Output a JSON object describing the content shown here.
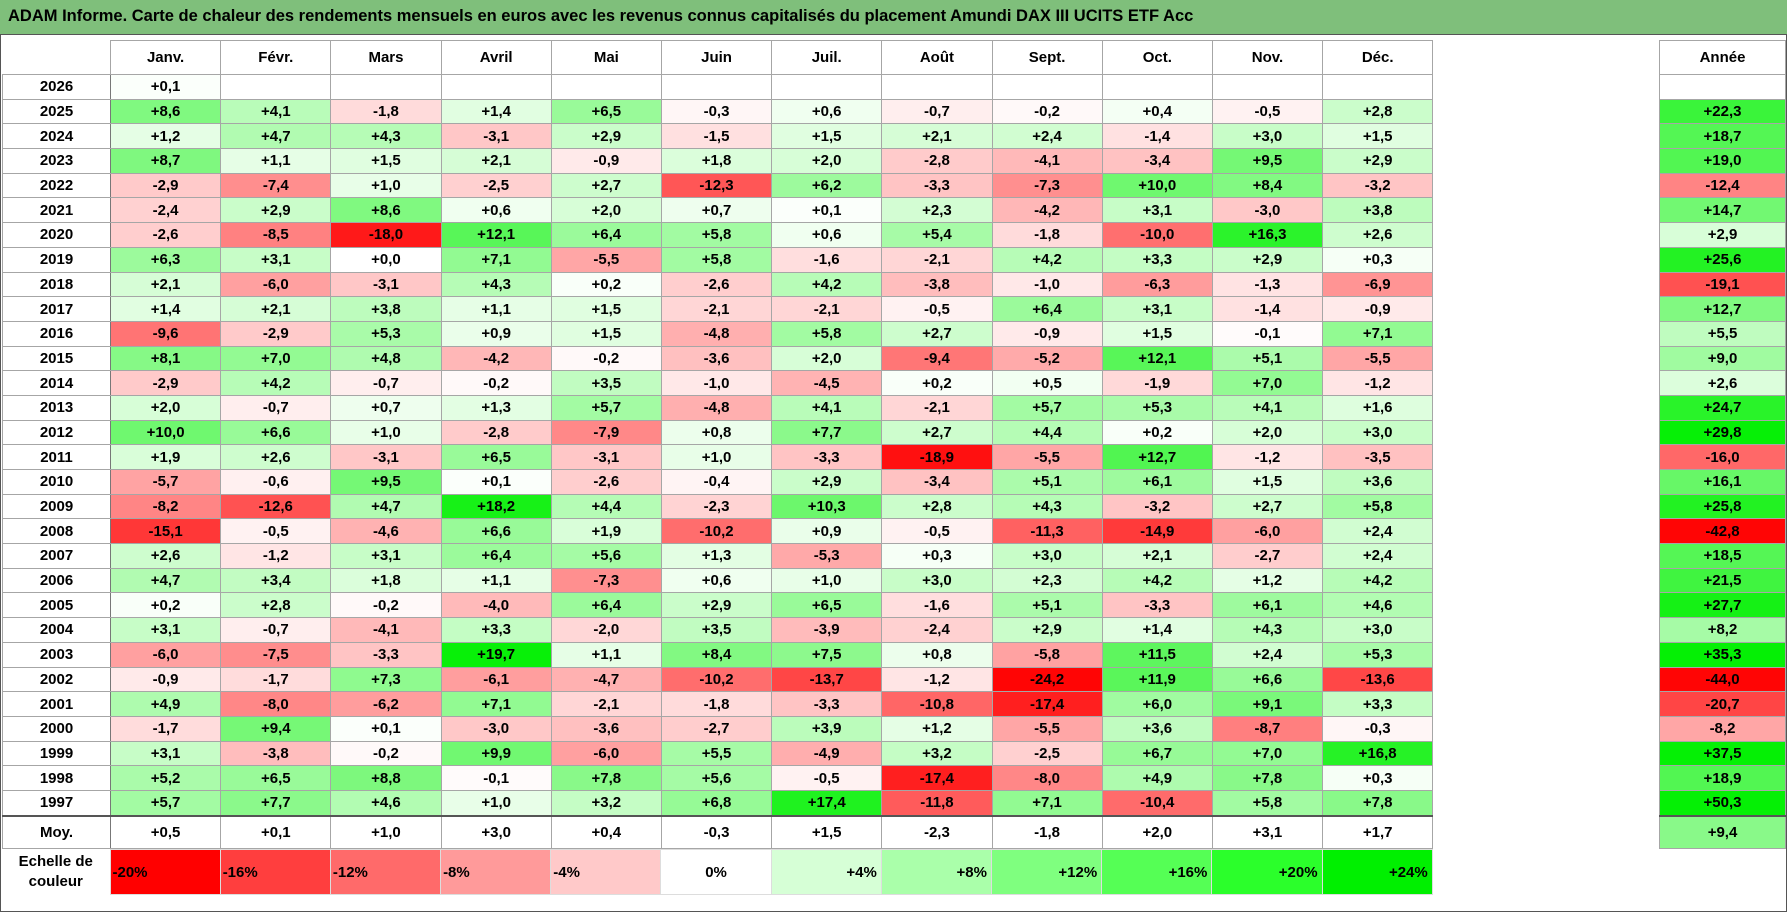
{
  "title": "ADAM Informe. Carte de chaleur des rendements mensuels en euros avec les revenus connus capitalisés du placement Amundi DAX III UCITS ETF Acc",
  "chart_data": {
    "type": "heatmap",
    "columns": [
      "Janv.",
      "Févr.",
      "Mars",
      "Avril",
      "Mai",
      "Juin",
      "Juil.",
      "Août",
      "Sept.",
      "Oct.",
      "Nov.",
      "Déc."
    ],
    "annual_header": "Année",
    "rows": [
      {
        "year": "2026",
        "values": [
          "+0,1",
          "",
          "",
          "",
          "",
          "",
          "",
          "",
          "",
          "",
          "",
          ""
        ],
        "annual": ""
      },
      {
        "year": "2025",
        "values": [
          "+8,6",
          "+4,1",
          "-1,8",
          "+1,4",
          "+6,5",
          "-0,3",
          "+0,6",
          "-0,7",
          "-0,2",
          "+0,4",
          "-0,5",
          "+2,8"
        ],
        "annual": "+22,3"
      },
      {
        "year": "2024",
        "values": [
          "+1,2",
          "+4,7",
          "+4,3",
          "-3,1",
          "+2,9",
          "-1,5",
          "+1,5",
          "+2,1",
          "+2,4",
          "-1,4",
          "+3,0",
          "+1,5"
        ],
        "annual": "+18,7"
      },
      {
        "year": "2023",
        "values": [
          "+8,7",
          "+1,1",
          "+1,5",
          "+2,1",
          "-0,9",
          "+1,8",
          "+2,0",
          "-2,8",
          "-4,1",
          "-3,4",
          "+9,5",
          "+2,9"
        ],
        "annual": "+19,0"
      },
      {
        "year": "2022",
        "values": [
          "-2,9",
          "-7,4",
          "+1,0",
          "-2,5",
          "+2,7",
          "-12,3",
          "+6,2",
          "-3,3",
          "-7,3",
          "+10,0",
          "+8,4",
          "-3,2"
        ],
        "annual": "-12,4"
      },
      {
        "year": "2021",
        "values": [
          "-2,4",
          "+2,9",
          "+8,6",
          "+0,6",
          "+2,0",
          "+0,7",
          "+0,1",
          "+2,3",
          "-4,2",
          "+3,1",
          "-3,0",
          "+3,8"
        ],
        "annual": "+14,7"
      },
      {
        "year": "2020",
        "values": [
          "-2,6",
          "-8,5",
          "-18,0",
          "+12,1",
          "+6,4",
          "+5,8",
          "+0,6",
          "+5,4",
          "-1,8",
          "-10,0",
          "+16,3",
          "+2,6"
        ],
        "annual": "+2,9"
      },
      {
        "year": "2019",
        "values": [
          "+6,3",
          "+3,1",
          "+0,0",
          "+7,1",
          "-5,5",
          "+5,8",
          "-1,6",
          "-2,1",
          "+4,2",
          "+3,3",
          "+2,9",
          "+0,3"
        ],
        "annual": "+25,6"
      },
      {
        "year": "2018",
        "values": [
          "+2,1",
          "-6,0",
          "-3,1",
          "+4,3",
          "+0,2",
          "-2,6",
          "+4,2",
          "-3,8",
          "-1,0",
          "-6,3",
          "-1,3",
          "-6,9"
        ],
        "annual": "-19,1"
      },
      {
        "year": "2017",
        "values": [
          "+1,4",
          "+2,1",
          "+3,8",
          "+1,1",
          "+1,5",
          "-2,1",
          "-2,1",
          "-0,5",
          "+6,4",
          "+3,1",
          "-1,4",
          "-0,9"
        ],
        "annual": "+12,7"
      },
      {
        "year": "2016",
        "values": [
          "-9,6",
          "-2,9",
          "+5,3",
          "+0,9",
          "+1,5",
          "-4,8",
          "+5,8",
          "+2,7",
          "-0,9",
          "+1,5",
          "-0,1",
          "+7,1"
        ],
        "annual": "+5,5"
      },
      {
        "year": "2015",
        "values": [
          "+8,1",
          "+7,0",
          "+4,8",
          "-4,2",
          "-0,2",
          "-3,6",
          "+2,0",
          "-9,4",
          "-5,2",
          "+12,1",
          "+5,1",
          "-5,5"
        ],
        "annual": "+9,0"
      },
      {
        "year": "2014",
        "values": [
          "-2,9",
          "+4,2",
          "-0,7",
          "-0,2",
          "+3,5",
          "-1,0",
          "-4,5",
          "+0,2",
          "+0,5",
          "-1,9",
          "+7,0",
          "-1,2"
        ],
        "annual": "+2,6"
      },
      {
        "year": "2013",
        "values": [
          "+2,0",
          "-0,7",
          "+0,7",
          "+1,3",
          "+5,7",
          "-4,8",
          "+4,1",
          "-2,1",
          "+5,7",
          "+5,3",
          "+4,1",
          "+1,6"
        ],
        "annual": "+24,7"
      },
      {
        "year": "2012",
        "values": [
          "+10,0",
          "+6,6",
          "+1,0",
          "-2,8",
          "-7,9",
          "+0,8",
          "+7,7",
          "+2,7",
          "+4,4",
          "+0,2",
          "+2,0",
          "+3,0"
        ],
        "annual": "+29,8"
      },
      {
        "year": "2011",
        "values": [
          "+1,9",
          "+2,6",
          "-3,1",
          "+6,5",
          "-3,1",
          "+1,0",
          "-3,3",
          "-18,9",
          "-5,5",
          "+12,7",
          "-1,2",
          "-3,5"
        ],
        "annual": "-16,0"
      },
      {
        "year": "2010",
        "values": [
          "-5,7",
          "-0,6",
          "+9,5",
          "+0,1",
          "-2,6",
          "-0,4",
          "+2,9",
          "-3,4",
          "+5,1",
          "+6,1",
          "+1,5",
          "+3,6"
        ],
        "annual": "+16,1"
      },
      {
        "year": "2009",
        "values": [
          "-8,2",
          "-12,6",
          "+4,7",
          "+18,2",
          "+4,4",
          "-2,3",
          "+10,3",
          "+2,8",
          "+4,3",
          "-3,2",
          "+2,7",
          "+5,8"
        ],
        "annual": "+25,8"
      },
      {
        "year": "2008",
        "values": [
          "-15,1",
          "-0,5",
          "-4,6",
          "+6,6",
          "+1,9",
          "-10,2",
          "+0,9",
          "-0,5",
          "-11,3",
          "-14,9",
          "-6,0",
          "+2,4"
        ],
        "annual": "-42,8"
      },
      {
        "year": "2007",
        "values": [
          "+2,6",
          "-1,2",
          "+3,1",
          "+6,4",
          "+5,6",
          "+1,3",
          "-5,3",
          "+0,3",
          "+3,0",
          "+2,1",
          "-2,7",
          "+2,4"
        ],
        "annual": "+18,5"
      },
      {
        "year": "2006",
        "values": [
          "+4,7",
          "+3,4",
          "+1,8",
          "+1,1",
          "-7,3",
          "+0,6",
          "+1,0",
          "+3,0",
          "+2,3",
          "+4,2",
          "+1,2",
          "+4,2"
        ],
        "annual": "+21,5"
      },
      {
        "year": "2005",
        "values": [
          "+0,2",
          "+2,8",
          "-0,2",
          "-4,0",
          "+6,4",
          "+2,9",
          "+6,5",
          "-1,6",
          "+5,1",
          "-3,3",
          "+6,1",
          "+4,6"
        ],
        "annual": "+27,7"
      },
      {
        "year": "2004",
        "values": [
          "+3,1",
          "-0,7",
          "-4,1",
          "+3,3",
          "-2,0",
          "+3,5",
          "-3,9",
          "-2,4",
          "+2,9",
          "+1,4",
          "+4,3",
          "+3,0"
        ],
        "annual": "+8,2"
      },
      {
        "year": "2003",
        "values": [
          "-6,0",
          "-7,5",
          "-3,3",
          "+19,7",
          "+1,1",
          "+8,4",
          "+7,5",
          "+0,8",
          "-5,8",
          "+11,5",
          "+2,4",
          "+5,3"
        ],
        "annual": "+35,3"
      },
      {
        "year": "2002",
        "values": [
          "-0,9",
          "-1,7",
          "+7,3",
          "-6,1",
          "-4,7",
          "-10,2",
          "-13,7",
          "-1,2",
          "-24,2",
          "+11,9",
          "+6,6",
          "-13,6"
        ],
        "annual": "-44,0"
      },
      {
        "year": "2001",
        "values": [
          "+4,9",
          "-8,0",
          "-6,2",
          "+7,1",
          "-2,1",
          "-1,8",
          "-3,3",
          "-10,8",
          "-17,4",
          "+6,0",
          "+9,1",
          "+3,3"
        ],
        "annual": "-20,7"
      },
      {
        "year": "2000",
        "values": [
          "-1,7",
          "+9,4",
          "+0,1",
          "-3,0",
          "-3,6",
          "-2,7",
          "+3,9",
          "+1,2",
          "-5,5",
          "+3,6",
          "-8,7",
          "-0,3"
        ],
        "annual": "-8,2"
      },
      {
        "year": "1999",
        "values": [
          "+3,1",
          "-3,8",
          "-0,2",
          "+9,9",
          "-6,0",
          "+5,5",
          "-4,9",
          "+3,2",
          "-2,5",
          "+6,7",
          "+7,0",
          "+16,8"
        ],
        "annual": "+37,5"
      },
      {
        "year": "1998",
        "values": [
          "+5,2",
          "+6,5",
          "+8,8",
          "-0,1",
          "+7,8",
          "+5,6",
          "-0,5",
          "-17,4",
          "-8,0",
          "+4,9",
          "+7,8",
          "+0,3"
        ],
        "annual": "+18,9"
      },
      {
        "year": "1997",
        "values": [
          "+5,7",
          "+7,7",
          "+4,6",
          "+1,0",
          "+3,2",
          "+6,8",
          "+17,4",
          "-11,8",
          "+7,1",
          "-10,4",
          "+5,8",
          "+7,8"
        ],
        "annual": "+50,3"
      }
    ],
    "average": {
      "label": "Moy.",
      "values": [
        "+0,5",
        "+0,1",
        "+1,0",
        "+3,0",
        "+0,4",
        "-0,3",
        "+1,5",
        "-2,3",
        "-1,8",
        "+2,0",
        "+3,1",
        "+1,7"
      ],
      "annual": "+9,4"
    },
    "scale": {
      "label_line1": "Echelle de",
      "label_line2": "couleur",
      "stops": [
        {
          "label": "-20%",
          "color": "#ff0000"
        },
        {
          "label": "-16%",
          "color": "#ff3e3e"
        },
        {
          "label": "-12%",
          "color": "#ff6a6a"
        },
        {
          "label": "-8%",
          "color": "#ff9a9a"
        },
        {
          "label": "-4%",
          "color": "#ffc9c9"
        },
        {
          "label": "0%",
          "color": "#ffffff"
        },
        {
          "label": "+4%",
          "color": "#d6ffd6"
        },
        {
          "label": "+8%",
          "color": "#aaffaa"
        },
        {
          "label": "+12%",
          "color": "#7fff7f"
        },
        {
          "label": "+16%",
          "color": "#55ff55"
        },
        {
          "label": "+20%",
          "color": "#2bff2b"
        },
        {
          "label": "+24%",
          "color": "#00f000"
        }
      ]
    }
  }
}
